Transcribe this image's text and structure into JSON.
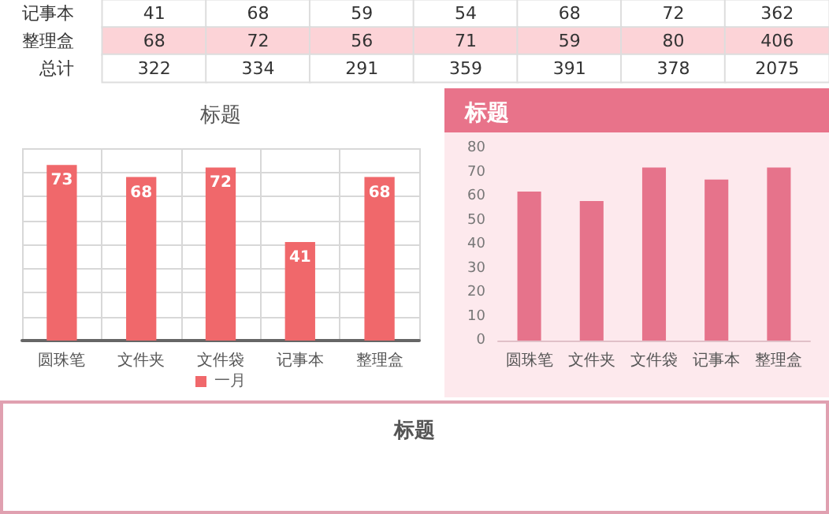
{
  "chart_data": [
    {
      "type": "heatmap",
      "categories": [
        null,
        null,
        null,
        null,
        null,
        null,
        null
      ],
      "y_categories": [
        "记事本",
        "整理盒",
        "总计"
      ],
      "cells": [
        [
          41,
          68,
          59,
          54,
          68,
          72,
          362
        ],
        [
          68,
          72,
          56,
          71,
          59,
          80,
          406
        ],
        [
          322,
          334,
          291,
          359,
          391,
          378,
          2075
        ]
      ],
      "data_labels": true
    },
    {
      "type": "bar",
      "title": "标题",
      "categories": [
        "圆珠笔",
        "文件夹",
        "文件袋",
        "记事本",
        "整理盒"
      ],
      "series": [
        {
          "name": "一月",
          "color": "#f0686b",
          "values": [
            73,
            68,
            72,
            41,
            68
          ]
        }
      ],
      "ylim": [
        0,
        80
      ],
      "yticks": [
        {
          "value": 0,
          "label": null
        },
        {
          "value": 10,
          "label": null
        },
        {
          "value": 20,
          "label": null
        },
        {
          "value": 30,
          "label": null
        },
        {
          "value": 40,
          "label": null
        },
        {
          "value": 50,
          "label": null
        },
        {
          "value": 60,
          "label": null
        },
        {
          "value": 70,
          "label": null
        },
        {
          "value": 80,
          "label": null
        }
      ],
      "tick_labels": "x",
      "grid": true,
      "legend": "bottom",
      "data_labels": true
    },
    {
      "type": "bar",
      "title": "标题",
      "categories": [
        "圆珠笔",
        "文件夹",
        "文件袋",
        "记事本",
        "整理盒"
      ],
      "values": [
        62,
        58,
        72,
        67,
        72
      ],
      "color": "#e6738b",
      "ylim": [
        0,
        80
      ],
      "yticks": [
        0,
        10,
        20,
        30,
        40,
        50,
        60,
        70,
        80
      ]
    },
    {
      "type": "other",
      "title": "标题"
    }
  ]
}
